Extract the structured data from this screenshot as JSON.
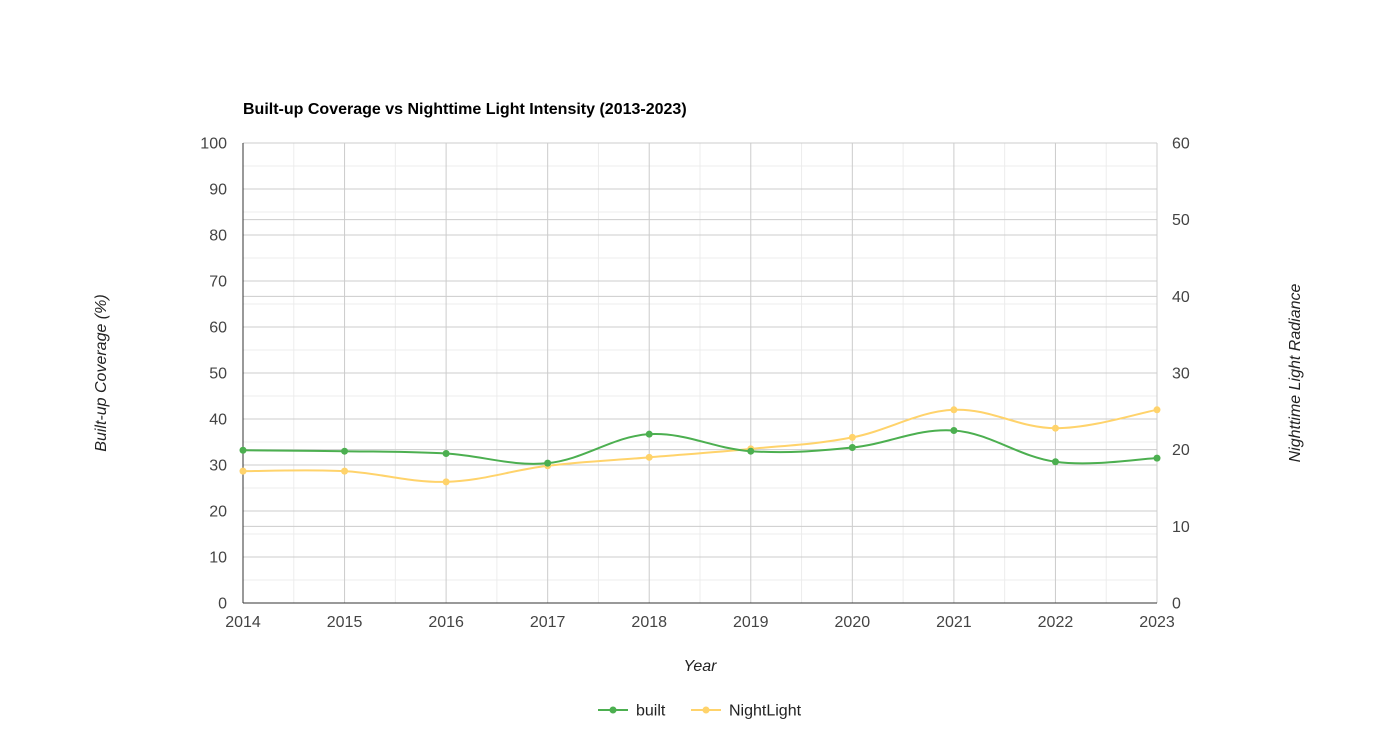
{
  "chart_data": {
    "type": "line",
    "title": "Built-up Coverage vs Nighttime Light Intensity (2013-2023)",
    "xlabel": "Year",
    "ylabel_left": "Built-up Coverage (%)",
    "ylabel_right": "Nighttime Light Radiance",
    "x": [
      2014,
      2015,
      2016,
      2017,
      2018,
      2019,
      2020,
      2021,
      2022,
      2023
    ],
    "y_left_ticks": [
      "0",
      "10",
      "20",
      "30",
      "40",
      "50",
      "60",
      "70",
      "80",
      "90",
      "100"
    ],
    "y_right_ticks": [
      "0",
      "10",
      "20",
      "30",
      "40",
      "50",
      "60"
    ],
    "ylim_left": [
      0,
      100
    ],
    "ylim_right": [
      0,
      60
    ],
    "grid": true,
    "legend_position": "bottom",
    "series": [
      {
        "name": "built",
        "axis": "left",
        "color": "#4caf50",
        "values": [
          33.2,
          33.0,
          32.5,
          30.4,
          36.7,
          33.0,
          33.8,
          37.5,
          30.7,
          31.5
        ]
      },
      {
        "name": "NightLight",
        "axis": "right",
        "color": "#ffd36b",
        "values": [
          17.2,
          17.2,
          15.8,
          17.9,
          19.0,
          20.1,
          21.6,
          25.2,
          22.8,
          25.2
        ]
      }
    ]
  }
}
